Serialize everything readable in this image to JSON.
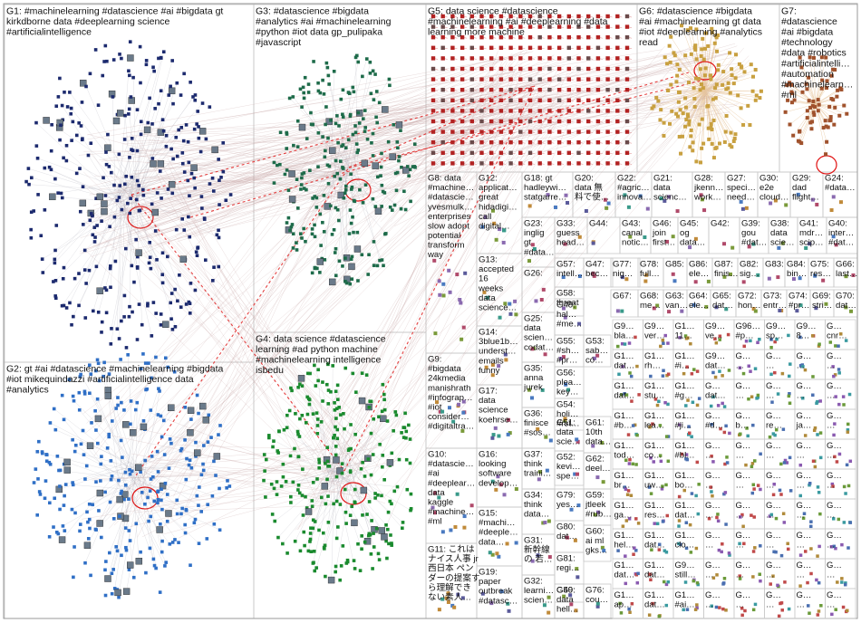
{
  "panels": [
    {
      "id": "G1",
      "lines": [
        "G1: #machinelearning #datascience #ai #bigdata gt",
        "kirkdborne data #deeplearning science",
        "#artificialintelligence"
      ]
    },
    {
      "id": "G2",
      "lines": [
        "G2: gt #ai #datascience #machinelearning #bigdata",
        "#iot mikequindazzi #artificialintelligence data",
        "#analytics"
      ]
    },
    {
      "id": "G3",
      "lines": [
        "G3: #datascience #bigdata",
        "#analytics #ai #machinelearning",
        "#python #iot data gp_pulipaka",
        "#javascript"
      ]
    },
    {
      "id": "G4",
      "lines": [
        "G4: data science #datascience",
        "learning #ad python machine",
        "#machinelearning intelligence",
        "isbedu"
      ]
    },
    {
      "id": "G5",
      "lines": [
        "G5: data science #datascience",
        "#machinelearning #ai #deeplearning #data",
        "learning more machine"
      ]
    },
    {
      "id": "G6",
      "lines": [
        "G6: #datascience #bigdata",
        "#ai #machinelearning gt data",
        "#iot #deeplearning #analytics",
        "read"
      ]
    },
    {
      "id": "G7",
      "lines": [
        "G7:",
        "#datascience",
        "#ai #bigdata",
        "#technology",
        "#data #robotics",
        "#artificialintelli…",
        "#automation",
        "#machinelearn…",
        "#ml"
      ]
    },
    {
      "id": "G8",
      "lines": [
        "G8: data",
        "#machine…",
        "#datascie…",
        "yvesmulk…",
        "enterprises",
        "slow adopt",
        "potential",
        "transform",
        "way"
      ]
    },
    {
      "id": "G9",
      "lines": [
        "G9:",
        "#bigdata",
        "24kmedia",
        "manishrath",
        "#infograp…",
        "#iot",
        "consider…",
        "#digitaltra…"
      ]
    },
    {
      "id": "G10",
      "lines": [
        "G10:",
        "#datascie…",
        "#ai",
        "#deeplear…",
        "data",
        "kaggle",
        "#machine…",
        "#ml"
      ]
    },
    {
      "id": "G11",
      "lines": [
        "G11: これは",
        "ナイス人事 jr",
        "西日本 ペン",
        "ダーの提案す",
        "ら理解でき",
        "ない素人…"
      ]
    },
    {
      "id": "G12",
      "lines": [
        "G12:",
        "applicat…",
        "great",
        "hidadigi…",
        "call",
        "digital…"
      ]
    },
    {
      "id": "G13",
      "lines": [
        "G13:",
        "accepted",
        "16",
        "weeks",
        "data",
        "science…"
      ]
    },
    {
      "id": "G14",
      "lines": [
        "G14:",
        "3blue1b…",
        "underst…",
        "emails",
        "funny"
      ]
    },
    {
      "id": "G15",
      "lines": [
        "G15:",
        "#machi…",
        "#deeple…",
        "data…"
      ]
    },
    {
      "id": "G16",
      "lines": [
        "G16:",
        "looking",
        "software",
        "develop…"
      ]
    },
    {
      "id": "G17",
      "lines": [
        "G17:",
        "data",
        "science",
        "koehrse…"
      ]
    },
    {
      "id": "G18",
      "lines": [
        "G18: gt",
        "hadleywi…",
        "statgarre…"
      ]
    },
    {
      "id": "G19",
      "lines": [
        "G19:",
        "paper",
        "outbreak",
        "#datasc…"
      ]
    },
    {
      "id": "G20",
      "lines": [
        "G20:",
        "data 無",
        "料で使…"
      ]
    },
    {
      "id": "G21",
      "lines": [
        "G21:",
        "data",
        "scienc…"
      ]
    },
    {
      "id": "G22",
      "lines": [
        "G22:",
        "#agric…",
        "innova…"
      ]
    },
    {
      "id": "G23",
      "lines": [
        "G23:",
        "inglig",
        "gt",
        "#data…"
      ]
    },
    {
      "id": "G24",
      "lines": [
        "G24:",
        "#data…"
      ]
    },
    {
      "id": "G25",
      "lines": [
        "G25:",
        "data",
        "scien…",
        "codat…"
      ]
    },
    {
      "id": "G26",
      "lines": [
        "G26:"
      ]
    },
    {
      "id": "G27",
      "lines": [
        "G27:",
        "speci…",
        "need…"
      ]
    },
    {
      "id": "G28",
      "lines": [
        "G28:",
        "jkenn…",
        "work…"
      ]
    },
    {
      "id": "G29",
      "lines": [
        "G29:",
        "dad",
        "flight…"
      ]
    },
    {
      "id": "G30",
      "lines": [
        "G30:",
        "e2e",
        "cloud…"
      ]
    },
    {
      "id": "G31",
      "lines": [
        "G31:",
        "新幹線",
        "の 若…"
      ]
    },
    {
      "id": "G32",
      "lines": [
        "G32:",
        "learni…",
        "scien…"
      ]
    },
    {
      "id": "G33",
      "lines": [
        "G33:",
        "guess",
        "head…"
      ]
    },
    {
      "id": "G34",
      "lines": [
        "G34:",
        "think",
        "data…"
      ]
    },
    {
      "id": "G35",
      "lines": [
        "G35:",
        "anna",
        "jurek"
      ]
    },
    {
      "id": "G36",
      "lines": [
        "G36:",
        "finisce",
        "#sos…"
      ]
    },
    {
      "id": "G37",
      "lines": [
        "G37:",
        "think",
        "traini…"
      ]
    },
    {
      "id": "G38",
      "lines": [
        "G38:",
        "data",
        "scie…"
      ]
    },
    {
      "id": "G39",
      "lines": [
        "G39:",
        "gou",
        "#dat…"
      ]
    },
    {
      "id": "G40",
      "lines": [
        "G40:",
        "inter…",
        "#dat…"
      ]
    },
    {
      "id": "G41",
      "lines": [
        "G41:",
        "mdr…",
        "scip…"
      ]
    },
    {
      "id": "G42",
      "lines": [
        "G42:"
      ]
    },
    {
      "id": "G43",
      "lines": [
        "G43:",
        "canal",
        "notic…"
      ]
    },
    {
      "id": "G44",
      "lines": [
        "G44:"
      ]
    },
    {
      "id": "G45",
      "lines": [
        "G45:",
        "og",
        "data…"
      ]
    },
    {
      "id": "G46",
      "lines": [
        "G46:",
        "join",
        "first…"
      ]
    },
    {
      "id": "G47",
      "lines": [
        "G47:",
        "bec…",
        "dat…"
      ]
    },
    {
      "id": "G48",
      "lines": [
        "G48:",
        "hal…",
        "#me…"
      ]
    },
    {
      "id": "G49",
      "lines": [
        "G49:",
        "#b…"
      ]
    },
    {
      "id": "G50",
      "lines": [
        "G50:",
        "data",
        "hell…"
      ]
    },
    {
      "id": "G51",
      "lines": [
        "G51:",
        "data",
        "scie…"
      ]
    },
    {
      "id": "G52",
      "lines": [
        "G52:",
        "kevi…",
        "spe…"
      ]
    },
    {
      "id": "G53",
      "lines": [
        "G53:",
        "sab…",
        "có…"
      ]
    },
    {
      "id": "G54",
      "lines": [
        "G54:",
        "holi…",
        "#rst…"
      ]
    },
    {
      "id": "G55",
      "lines": [
        "G55:",
        "#sh…",
        "#pr…"
      ]
    },
    {
      "id": "G56",
      "lines": [
        "G56:",
        "plea…",
        "key…"
      ]
    },
    {
      "id": "G57",
      "lines": [
        "G57:",
        "intell…",
        "#dat…"
      ]
    },
    {
      "id": "G58",
      "lines": [
        "G58:",
        "threat",
        "hunt…"
      ]
    },
    {
      "id": "G59",
      "lines": [
        "G59:",
        "jtleek",
        "#rub…"
      ]
    },
    {
      "id": "G60",
      "lines": [
        "G60:",
        "ai ml",
        "gks…"
      ]
    },
    {
      "id": "G61",
      "lines": [
        "G61:",
        "10th",
        "data…"
      ]
    },
    {
      "id": "G62",
      "lines": [
        "G62:",
        "deel…"
      ]
    },
    {
      "id": "G63",
      "lines": [
        "G63:",
        "van…"
      ]
    },
    {
      "id": "G64",
      "lines": [
        "G64:",
        "ele…"
      ]
    },
    {
      "id": "G65",
      "lines": [
        "G65:",
        "dat…"
      ]
    },
    {
      "id": "G66",
      "lines": [
        "G66:",
        "last…"
      ]
    },
    {
      "id": "G67",
      "lines": [
        "G67:"
      ]
    },
    {
      "id": "G68",
      "lines": [
        "G68:",
        "me…"
      ]
    },
    {
      "id": "G69",
      "lines": [
        "G69:",
        "stri…"
      ]
    },
    {
      "id": "G70",
      "lines": [
        "G70:",
        "dat…"
      ]
    },
    {
      "id": "G72",
      "lines": [
        "G72:",
        "hon…"
      ]
    },
    {
      "id": "G73",
      "lines": [
        "G73:",
        "entr…"
      ]
    },
    {
      "id": "G74",
      "lines": [
        "G74:",
        "#pr…"
      ]
    },
    {
      "id": "G75",
      "lines": [
        "G75:",
        "res…"
      ]
    },
    {
      "id": "G76",
      "lines": [
        "G76:",
        "cou…"
      ]
    },
    {
      "id": "G77",
      "lines": [
        "G77:",
        "nig…"
      ]
    },
    {
      "id": "G78",
      "lines": [
        "G78:",
        "full…"
      ]
    },
    {
      "id": "G79",
      "lines": [
        "G79:",
        "yes…"
      ]
    },
    {
      "id": "G80",
      "lines": [
        "G80:",
        "dat…"
      ]
    },
    {
      "id": "G81",
      "lines": [
        "G81:",
        "regi…"
      ]
    },
    {
      "id": "G82",
      "lines": [
        "G82:",
        "sig…"
      ]
    },
    {
      "id": "G83",
      "lines": [
        "G83:"
      ]
    },
    {
      "id": "G84",
      "lines": [
        "G84:",
        "bin…"
      ]
    },
    {
      "id": "G85",
      "lines": [
        "G85:"
      ]
    },
    {
      "id": "G86",
      "lines": [
        "G86:",
        "ele…"
      ]
    },
    {
      "id": "G87",
      "lines": [
        "G87:",
        "finis…"
      ]
    }
  ],
  "grid_labels": [
    "G9… bla…",
    "G9… ver…",
    "G1… 11…",
    "G9… ve…",
    "G96… #p…",
    "G9… sp…",
    "G9… 8…",
    "G… cnr…",
    "G1… dat…",
    "G1… rh…",
    "G1… #i…",
    "G9… dat…",
    "G… …",
    "G… …",
    "G… …",
    "G… …",
    "G1… dat…",
    "G1… stu…",
    "G1… #g…",
    "G… dat…",
    "G… …",
    "G… …",
    "G… …",
    "G… …",
    "G1… #b…",
    "G1… lea…",
    "G1… #ji…",
    "G… #d…",
    "G… b…",
    "G… re…",
    "G… ja…",
    "G… …",
    "G1… tod…",
    "G1… co…",
    "G1… #bl…",
    "G… …",
    "G… …",
    "G… …",
    "G… …",
    "G… …",
    "G1… br…",
    "G1… uw…",
    "G1… bo…",
    "G… …",
    "G… …",
    "G… …",
    "G… …",
    "G… …",
    "G1… ga…",
    "G1… res…",
    "G1… dat…",
    "G… …",
    "G… …",
    "G… …",
    "G… …",
    "G… …",
    "G1… hel…",
    "G1… dat…",
    "G1… clo…",
    "G… …",
    "G… …",
    "G… …",
    "G… …",
    "G… …",
    "G1… dat…",
    "G1… dat…",
    "G9… still…",
    "G… …",
    "G… …",
    "G… …",
    "G… …",
    "G… …",
    "G1… ap…",
    "G1… dat…",
    "G1… #ai…",
    "G… …",
    "G… …",
    "G… …",
    "G… …",
    "G… …"
  ],
  "colors": {
    "G1": "#1c2a6e",
    "G2": "#2f6fc6",
    "G3": "#1e6b4a",
    "G4": "#1a8a2e",
    "G5": "#b22222",
    "G6": "#c8a040",
    "G7": "#a0522d",
    "edge": "#c4a4a4",
    "edge_strong": "#e02020",
    "border": "#c8c8c8"
  }
}
